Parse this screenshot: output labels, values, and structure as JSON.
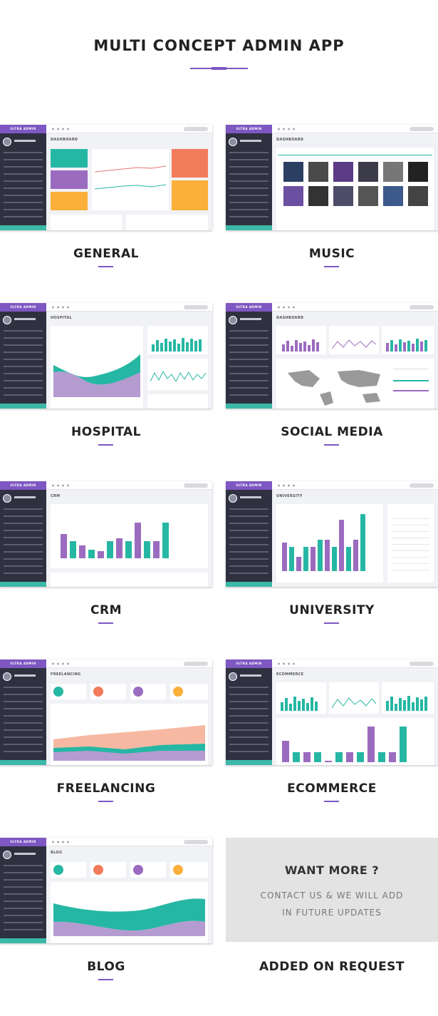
{
  "title": "MULTI CONCEPT ADMIN APP",
  "brand": "ULTRA ADMIN",
  "cards": [
    {
      "label": "GENERAL",
      "heading": "DASHBOARD"
    },
    {
      "label": "MUSIC",
      "heading": "DASHBOARD"
    },
    {
      "label": "HOSPITAL",
      "heading": "HOSPITAL"
    },
    {
      "label": "SOCIAL MEDIA",
      "heading": "DASHBOARD"
    },
    {
      "label": "CRM",
      "heading": "CRM"
    },
    {
      "label": "UNIVERSITY",
      "heading": "UNIVERSITY"
    },
    {
      "label": "FREELANCING",
      "heading": "FREELANCING"
    },
    {
      "label": "ECOMMERCE",
      "heading": "ECOMMERCE"
    },
    {
      "label": "BLOG",
      "heading": "BLOG"
    }
  ],
  "more": {
    "title": "WANT MORE ?",
    "line1": "CONTACT US & WE WILL ADD",
    "line2": "IN FUTURE UPDATES",
    "label": "ADDED ON REQUEST"
  },
  "colors": {
    "accent": "#7e57c2",
    "teal": "#26b7a4",
    "purple": "#9b6bc0",
    "sidebar": "#2f3140"
  }
}
